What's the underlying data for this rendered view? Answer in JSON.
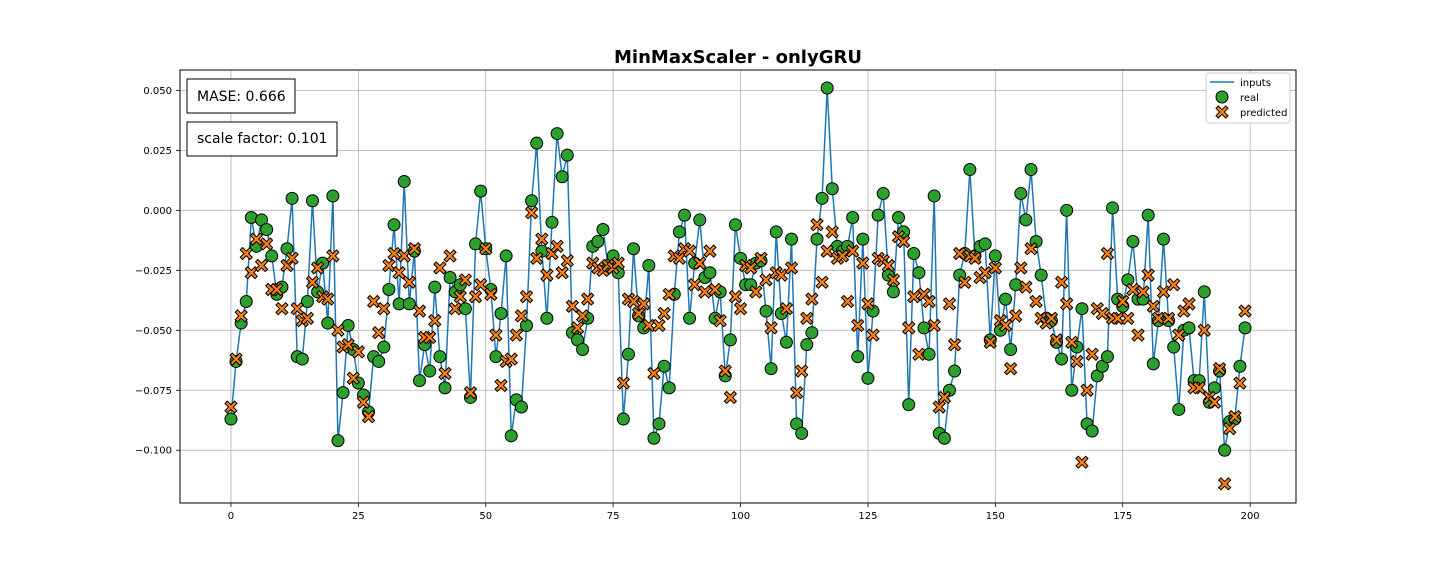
{
  "chart_data": {
    "type": "line",
    "title": "MinMaxScaler - onlyGRU",
    "xlabel": "",
    "ylabel": "",
    "xlim": [
      -10,
      209
    ],
    "ylim": [
      -0.122,
      0.0585
    ],
    "x_ticks": [
      0,
      25,
      50,
      75,
      100,
      125,
      150,
      175,
      200
    ],
    "x_tick_labels": [
      "0",
      "25",
      "50",
      "75",
      "100",
      "125",
      "150",
      "175",
      "200"
    ],
    "y_ticks": [
      0.05,
      0.025,
      0.0,
      -0.025,
      -0.05,
      -0.075,
      -0.1
    ],
    "y_tick_labels": [
      "0.050",
      "0.025",
      "0.000",
      "−0.025",
      "−0.050",
      "−0.075",
      "−0.100"
    ],
    "grid": true,
    "legend_position": "top-right",
    "annotations": [
      "MASE: 0.666",
      "scale factor: 0.101"
    ],
    "colors": {
      "inputs": "#1f77b4",
      "real": "#2ca02c",
      "predicted": "#ff7f0e"
    },
    "series": [
      {
        "name": "inputs",
        "style": "line",
        "x_start": 0,
        "values": [
          -0.087,
          -0.063,
          -0.047,
          -0.038,
          -0.003,
          -0.015,
          -0.004,
          -0.008,
          -0.019,
          -0.035,
          -0.032,
          -0.016,
          0.005,
          -0.061,
          -0.062,
          -0.038,
          0.004,
          -0.034,
          -0.022,
          -0.047,
          0.006,
          -0.096,
          -0.076,
          -0.048,
          -0.058,
          -0.072,
          -0.077,
          -0.084,
          -0.061,
          -0.063,
          -0.057,
          -0.033,
          -0.006,
          -0.039,
          0.012,
          -0.039,
          -0.017,
          -0.071,
          -0.056,
          -0.067,
          -0.032,
          -0.061,
          -0.074,
          -0.028,
          -0.034,
          -0.031,
          -0.041,
          -0.078,
          -0.014,
          0.008,
          -0.016,
          -0.033,
          -0.061,
          -0.043,
          -0.019,
          -0.094,
          -0.079,
          -0.082,
          -0.048,
          0.004,
          0.028,
          -0.017,
          -0.045,
          -0.005,
          0.032,
          0.014,
          0.023,
          -0.051,
          -0.054,
          -0.058,
          -0.045,
          -0.015,
          -0.013,
          -0.008,
          -0.023,
          -0.019,
          -0.026,
          -0.087,
          -0.06,
          -0.016,
          -0.044,
          -0.049,
          -0.023,
          -0.095,
          -0.089,
          -0.065,
          -0.074,
          -0.035,
          -0.009,
          -0.002,
          -0.045,
          -0.022,
          -0.004,
          -0.028,
          -0.026,
          -0.045,
          -0.034,
          -0.069,
          -0.054,
          -0.006,
          -0.02,
          -0.031,
          -0.031,
          -0.022,
          -0.021,
          -0.042,
          -0.066,
          -0.009,
          -0.043,
          -0.055,
          -0.012,
          -0.089,
          -0.093,
          -0.056,
          -0.051,
          -0.012,
          0.005,
          0.051,
          0.009,
          -0.015,
          -0.017,
          -0.015,
          -0.003,
          -0.061,
          -0.012,
          -0.07,
          -0.042,
          -0.002,
          0.007,
          -0.027,
          -0.034,
          -0.003,
          -0.009,
          -0.081,
          -0.018,
          -0.026,
          -0.049,
          -0.06,
          0.006,
          -0.093,
          -0.095,
          -0.075,
          -0.067,
          -0.027,
          -0.018,
          0.017,
          -0.019,
          -0.015,
          -0.014,
          -0.054,
          -0.019,
          -0.05,
          -0.037,
          -0.058,
          -0.031,
          0.007,
          -0.004,
          0.017,
          -0.013,
          -0.027,
          -0.045,
          -0.046,
          -0.055,
          -0.062,
          0.0,
          -0.075,
          -0.057,
          -0.041,
          -0.089,
          -0.092,
          -0.069,
          -0.065,
          -0.061,
          0.001,
          -0.037,
          -0.04,
          -0.029,
          -0.013,
          -0.037,
          -0.037,
          -0.002,
          -0.064,
          -0.046,
          -0.012,
          -0.046,
          -0.057,
          -0.083,
          -0.05,
          -0.049,
          -0.071,
          -0.071,
          -0.034,
          -0.08,
          -0.074,
          -0.067,
          -0.1,
          -0.088,
          -0.087,
          -0.065,
          -0.049
        ]
      },
      {
        "name": "real",
        "style": "circle-marker",
        "x_start": 0,
        "values": [
          -0.087,
          -0.063,
          -0.047,
          -0.038,
          -0.003,
          -0.015,
          -0.004,
          -0.008,
          -0.019,
          -0.035,
          -0.032,
          -0.016,
          0.005,
          -0.061,
          -0.062,
          -0.038,
          0.004,
          -0.034,
          -0.022,
          -0.047,
          0.006,
          -0.096,
          -0.076,
          -0.048,
          -0.058,
          -0.072,
          -0.077,
          -0.084,
          -0.061,
          -0.063,
          -0.057,
          -0.033,
          -0.006,
          -0.039,
          0.012,
          -0.039,
          -0.017,
          -0.071,
          -0.056,
          -0.067,
          -0.032,
          -0.061,
          -0.074,
          -0.028,
          -0.034,
          -0.031,
          -0.041,
          -0.078,
          -0.014,
          0.008,
          -0.016,
          -0.033,
          -0.061,
          -0.043,
          -0.019,
          -0.094,
          -0.079,
          -0.082,
          -0.048,
          0.004,
          0.028,
          -0.017,
          -0.045,
          -0.005,
          0.032,
          0.014,
          0.023,
          -0.051,
          -0.054,
          -0.058,
          -0.045,
          -0.015,
          -0.013,
          -0.008,
          -0.023,
          -0.019,
          -0.026,
          -0.087,
          -0.06,
          -0.016,
          -0.044,
          -0.049,
          -0.023,
          -0.095,
          -0.089,
          -0.065,
          -0.074,
          -0.035,
          -0.009,
          -0.002,
          -0.045,
          -0.022,
          -0.004,
          -0.028,
          -0.026,
          -0.045,
          -0.034,
          -0.069,
          -0.054,
          -0.006,
          -0.02,
          -0.031,
          -0.031,
          -0.022,
          -0.021,
          -0.042,
          -0.066,
          -0.009,
          -0.043,
          -0.055,
          -0.012,
          -0.089,
          -0.093,
          -0.056,
          -0.051,
          -0.012,
          0.005,
          0.051,
          0.009,
          -0.015,
          -0.017,
          -0.015,
          -0.003,
          -0.061,
          -0.012,
          -0.07,
          -0.042,
          -0.002,
          0.007,
          -0.027,
          -0.034,
          -0.003,
          -0.009,
          -0.081,
          -0.018,
          -0.026,
          -0.049,
          -0.06,
          0.006,
          -0.093,
          -0.095,
          -0.075,
          -0.067,
          -0.027,
          -0.018,
          0.017,
          -0.019,
          -0.015,
          -0.014,
          -0.054,
          -0.019,
          -0.05,
          -0.037,
          -0.058,
          -0.031,
          0.007,
          -0.004,
          0.017,
          -0.013,
          -0.027,
          -0.045,
          -0.046,
          -0.055,
          -0.062,
          0.0,
          -0.075,
          -0.057,
          -0.041,
          -0.089,
          -0.092,
          -0.069,
          -0.065,
          -0.061,
          0.001,
          -0.037,
          -0.04,
          -0.029,
          -0.013,
          -0.037,
          -0.037,
          -0.002,
          -0.064,
          -0.046,
          -0.012,
          -0.046,
          -0.057,
          -0.083,
          -0.05,
          -0.049,
          -0.071,
          -0.071,
          -0.034,
          -0.08,
          -0.074,
          -0.067,
          -0.1,
          -0.088,
          -0.087,
          -0.065,
          -0.049
        ]
      },
      {
        "name": "predicted",
        "style": "x-marker",
        "x_start": 0,
        "values": [
          -0.082,
          -0.062,
          -0.044,
          -0.018,
          -0.026,
          -0.012,
          -0.023,
          -0.014,
          -0.033,
          -0.033,
          -0.041,
          -0.023,
          -0.02,
          -0.041,
          -0.046,
          -0.045,
          -0.03,
          -0.024,
          -0.036,
          -0.037,
          -0.019,
          -0.05,
          -0.057,
          -0.056,
          -0.07,
          -0.059,
          -0.08,
          -0.086,
          -0.038,
          -0.051,
          -0.041,
          -0.023,
          -0.018,
          -0.026,
          -0.019,
          -0.03,
          -0.016,
          -0.042,
          -0.053,
          -0.053,
          -0.046,
          -0.024,
          -0.068,
          -0.019,
          -0.041,
          -0.036,
          -0.029,
          -0.076,
          -0.036,
          -0.031,
          -0.016,
          -0.035,
          -0.052,
          -0.073,
          -0.063,
          -0.062,
          -0.052,
          -0.044,
          -0.036,
          -0.001,
          -0.02,
          -0.012,
          -0.027,
          -0.018,
          -0.015,
          -0.026,
          -0.021,
          -0.04,
          -0.049,
          -0.044,
          -0.037,
          -0.022,
          -0.024,
          -0.025,
          -0.023,
          -0.024,
          -0.022,
          -0.072,
          -0.037,
          -0.038,
          -0.043,
          -0.039,
          -0.048,
          -0.068,
          -0.048,
          -0.043,
          -0.035,
          -0.019,
          -0.02,
          -0.016,
          -0.017,
          -0.031,
          -0.022,
          -0.034,
          -0.017,
          -0.033,
          -0.046,
          -0.067,
          -0.078,
          -0.036,
          -0.041,
          -0.023,
          -0.024,
          -0.034,
          -0.02,
          -0.029,
          -0.049,
          -0.026,
          -0.027,
          -0.041,
          -0.024,
          -0.076,
          -0.067,
          -0.045,
          -0.037,
          -0.006,
          -0.03,
          -0.017,
          -0.009,
          -0.02,
          -0.019,
          -0.038,
          -0.017,
          -0.048,
          -0.022,
          -0.039,
          -0.052,
          -0.02,
          -0.021,
          -0.023,
          -0.029,
          -0.011,
          -0.013,
          -0.049,
          -0.036,
          -0.06,
          -0.035,
          -0.038,
          -0.048,
          -0.082,
          -0.078,
          -0.039,
          -0.056,
          -0.018,
          -0.03,
          -0.019,
          -0.02,
          -0.028,
          -0.026,
          -0.055,
          -0.024,
          -0.046,
          -0.048,
          -0.066,
          -0.044,
          -0.024,
          -0.032,
          -0.016,
          -0.038,
          -0.045,
          -0.047,
          -0.045,
          -0.054,
          -0.03,
          -0.039,
          -0.055,
          -0.063,
          -0.105,
          -0.075,
          -0.06,
          -0.041,
          -0.043,
          -0.018,
          -0.045,
          -0.045,
          -0.038,
          -0.045,
          -0.033,
          -0.052,
          -0.034,
          -0.027,
          -0.04,
          -0.045,
          -0.034,
          -0.045,
          -0.031,
          -0.052,
          -0.042,
          -0.039,
          -0.074,
          -0.074,
          -0.05,
          -0.078,
          -0.08,
          -0.066,
          -0.114,
          -0.091,
          -0.086,
          -0.072,
          -0.042
        ]
      }
    ]
  }
}
